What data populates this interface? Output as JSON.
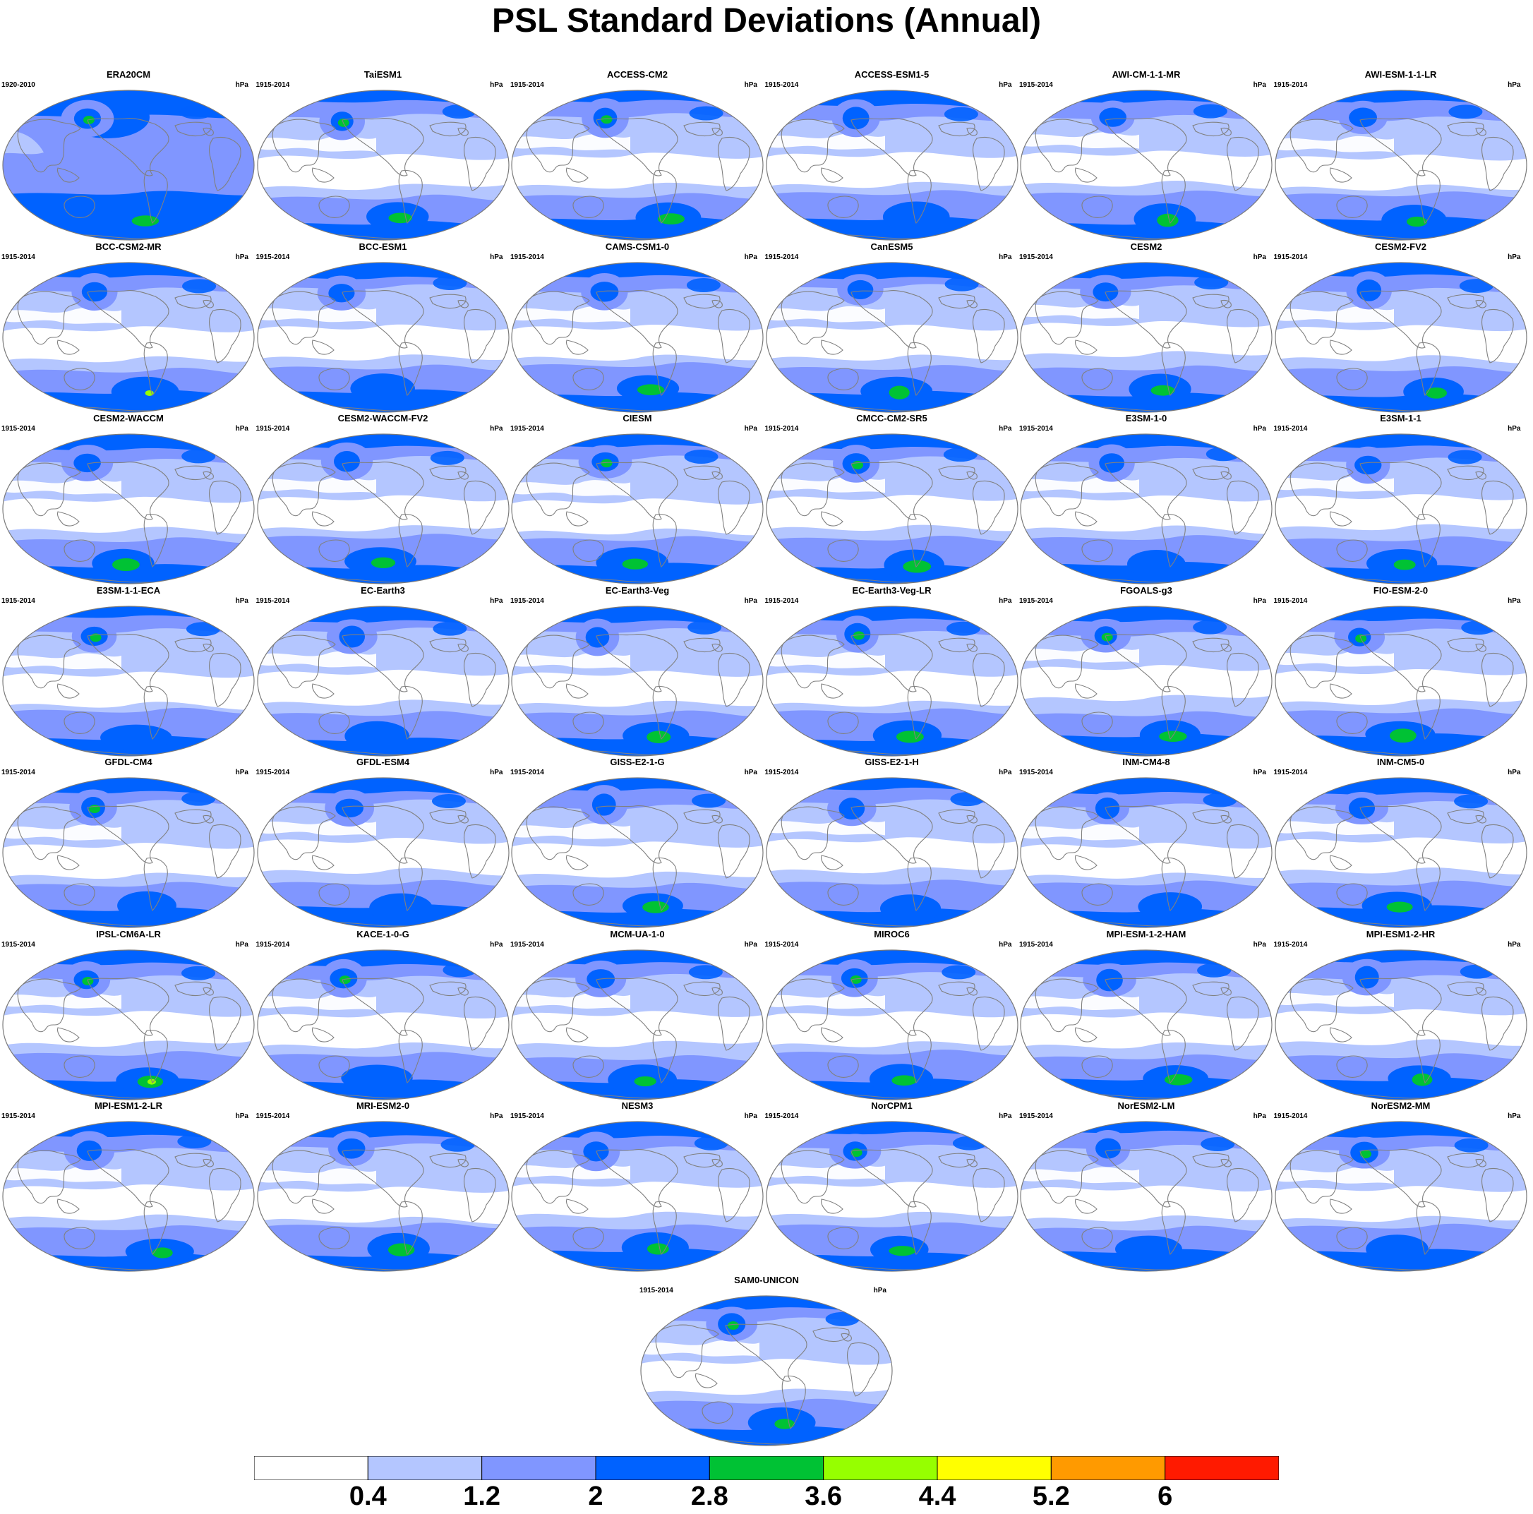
{
  "title": "PSL Standard Deviations (Annual)",
  "units": "hPa",
  "panels": [
    {
      "name": "ERA20CM",
      "period": "1920-2010"
    },
    {
      "name": "TaiESM1",
      "period": "1915-2014"
    },
    {
      "name": "ACCESS-CM2",
      "period": "1915-2014"
    },
    {
      "name": "ACCESS-ESM1-5",
      "period": "1915-2014"
    },
    {
      "name": "AWI-CM-1-1-MR",
      "period": "1915-2014"
    },
    {
      "name": "AWI-ESM-1-1-LR",
      "period": "1915-2014"
    },
    {
      "name": "BCC-CSM2-MR",
      "period": "1915-2014"
    },
    {
      "name": "BCC-ESM1",
      "period": "1915-2014"
    },
    {
      "name": "CAMS-CSM1-0",
      "period": "1915-2014"
    },
    {
      "name": "CanESM5",
      "period": "1915-2014"
    },
    {
      "name": "CESM2",
      "period": "1915-2014"
    },
    {
      "name": "CESM2-FV2",
      "period": "1915-2014"
    },
    {
      "name": "CESM2-WACCM",
      "period": "1915-2014"
    },
    {
      "name": "CESM2-WACCM-FV2",
      "period": "1915-2014"
    },
    {
      "name": "CIESM",
      "period": "1915-2014"
    },
    {
      "name": "CMCC-CM2-SR5",
      "period": "1915-2014"
    },
    {
      "name": "E3SM-1-0",
      "period": "1915-2014"
    },
    {
      "name": "E3SM-1-1",
      "period": "1915-2014"
    },
    {
      "name": "E3SM-1-1-ECA",
      "period": "1915-2014"
    },
    {
      "name": "EC-Earth3",
      "period": "1915-2014"
    },
    {
      "name": "EC-Earth3-Veg",
      "period": "1915-2014"
    },
    {
      "name": "EC-Earth3-Veg-LR",
      "period": "1915-2014"
    },
    {
      "name": "FGOALS-g3",
      "period": "1915-2014"
    },
    {
      "name": "FIO-ESM-2-0",
      "period": "1915-2014"
    },
    {
      "name": "GFDL-CM4",
      "period": "1915-2014"
    },
    {
      "name": "GFDL-ESM4",
      "period": "1915-2014"
    },
    {
      "name": "GISS-E2-1-G",
      "period": "1915-2014"
    },
    {
      "name": "GISS-E2-1-H",
      "period": "1915-2014"
    },
    {
      "name": "INM-CM4-8",
      "period": "1915-2014"
    },
    {
      "name": "INM-CM5-0",
      "period": "1915-2014"
    },
    {
      "name": "IPSL-CM6A-LR",
      "period": "1915-2014"
    },
    {
      "name": "KACE-1-0-G",
      "period": "1915-2014"
    },
    {
      "name": "MCM-UA-1-0",
      "period": "1915-2014"
    },
    {
      "name": "MIROC6",
      "period": "1915-2014"
    },
    {
      "name": "MPI-ESM-1-2-HAM",
      "period": "1915-2014"
    },
    {
      "name": "MPI-ESM1-2-HR",
      "period": "1915-2014"
    },
    {
      "name": "MPI-ESM1-2-LR",
      "period": "1915-2014"
    },
    {
      "name": "MRI-ESM2-0",
      "period": "1915-2014"
    },
    {
      "name": "NESM3",
      "period": "1915-2014"
    },
    {
      "name": "NorCPM1",
      "period": "1915-2014"
    },
    {
      "name": "NorESM2-LM",
      "period": "1915-2014"
    },
    {
      "name": "NorESM2-MM",
      "period": "1915-2014"
    },
    {
      "name": "SAM0-UNICON",
      "period": "1915-2014"
    }
  ],
  "colorbar": {
    "labels": [
      "0.4",
      "1.2",
      "2",
      "2.8",
      "3.6",
      "4.4",
      "5.2",
      "6"
    ],
    "colors": [
      "#ffffff",
      "#b4c6ff",
      "#8096ff",
      "#0062ff",
      "#00c234",
      "#96ff00",
      "#ffff00",
      "#ff9a00",
      "#ff1a00"
    ]
  }
}
